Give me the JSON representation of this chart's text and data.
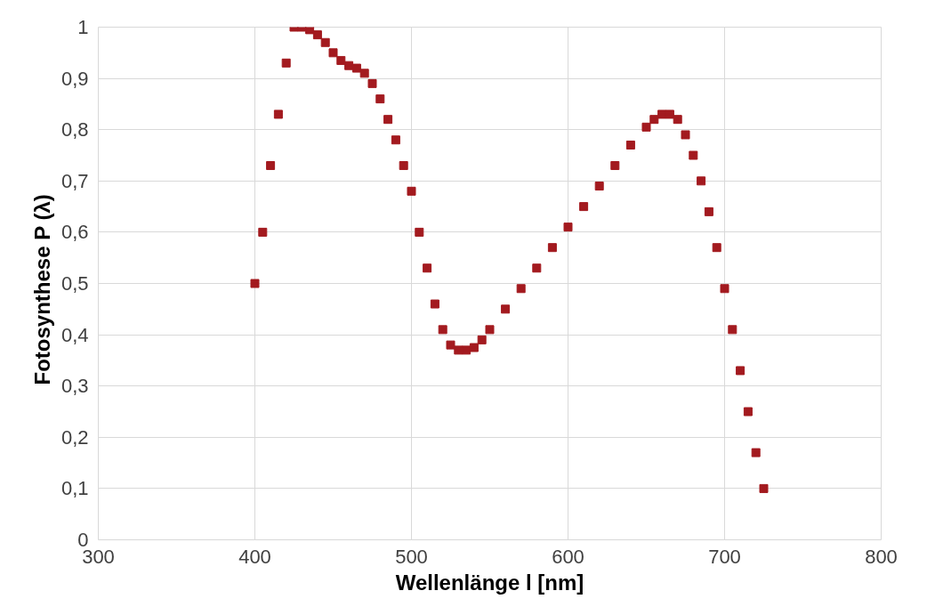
{
  "chart_data": {
    "type": "scatter",
    "xlabel": "Wellenlänge l [nm]",
    "ylabel": "Fotosynthese  P  (λ)",
    "x": [
      400,
      405,
      410,
      415,
      420,
      425,
      430,
      435,
      440,
      445,
      450,
      455,
      460,
      465,
      470,
      475,
      480,
      485,
      490,
      495,
      500,
      505,
      510,
      515,
      520,
      525,
      530,
      535,
      540,
      545,
      550,
      560,
      570,
      580,
      590,
      600,
      610,
      620,
      630,
      640,
      650,
      655,
      660,
      665,
      670,
      675,
      680,
      685,
      690,
      695,
      700,
      705,
      710,
      715,
      720,
      725
    ],
    "series": [
      {
        "color": "#a31a1f",
        "values": [
          0.5,
          0.6,
          0.73,
          0.83,
          0.93,
          1.0,
          1.0,
          0.995,
          0.985,
          0.97,
          0.95,
          0.935,
          0.925,
          0.92,
          0.91,
          0.89,
          0.86,
          0.82,
          0.78,
          0.73,
          0.68,
          0.6,
          0.53,
          0.46,
          0.41,
          0.38,
          0.37,
          0.37,
          0.375,
          0.39,
          0.41,
          0.45,
          0.49,
          0.53,
          0.57,
          0.61,
          0.65,
          0.69,
          0.73,
          0.77,
          0.805,
          0.82,
          0.83,
          0.83,
          0.82,
          0.79,
          0.75,
          0.7,
          0.64,
          0.57,
          0.49,
          0.41,
          0.33,
          0.25,
          0.17,
          0.1
        ]
      }
    ],
    "xlim": [
      300,
      800
    ],
    "xticks": [
      300,
      400,
      500,
      600,
      700,
      800
    ],
    "ylim": [
      0,
      1
    ],
    "yticks": [
      0,
      {
        "value": 0.1,
        "label": "0,1"
      },
      {
        "value": 0.2,
        "label": "0,2"
      },
      {
        "value": 0.3,
        "label": "0,3"
      },
      {
        "value": 0.4,
        "label": "0,4"
      },
      {
        "value": 0.5,
        "label": "0,5"
      },
      {
        "value": 0.6,
        "label": "0,6"
      },
      {
        "value": 0.7,
        "label": "0,7"
      },
      {
        "value": 0.8,
        "label": "0,8"
      },
      {
        "value": 0.9,
        "label": "0,9"
      },
      1
    ],
    "grid": true,
    "marker": "square"
  }
}
